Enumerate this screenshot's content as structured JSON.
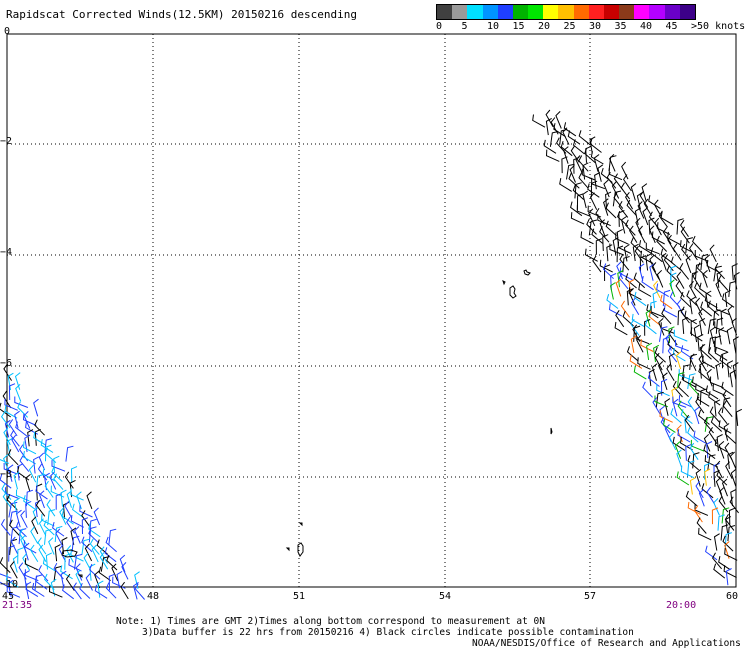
{
  "title": "Rapidscat Corrected Winds(12.5KM) 20150216 descending",
  "legend": {
    "unit": "knots",
    "colors": [
      "#404040",
      "#9a9a9a",
      "#00e0ff",
      "#0094ff",
      "#1f3fff",
      "#00b400",
      "#00e600",
      "#ffff00",
      "#ffc000",
      "#ff6a00",
      "#ff2020",
      "#c80000",
      "#8b3a1a",
      "#ff00ff",
      "#b400ff",
      "#6a00c8",
      "#3c0088"
    ],
    "labels": [
      "0",
      "5",
      "10",
      "15",
      "20",
      "25",
      "30",
      "35",
      "40",
      "45",
      ">50 knots"
    ]
  },
  "axes": {
    "x_ticks": [
      "45",
      "48",
      "51",
      "54",
      "57",
      "60"
    ],
    "y_ticks": [
      "0",
      "−2",
      "−4",
      "−6",
      "−8",
      "−10"
    ]
  },
  "times": {
    "left": "21:35",
    "right": "20:00"
  },
  "notes": [
    "Note: 1) Times are GMT 2)Times along bottom correspond to measurement at 0N",
    "3)Data buffer is 22 hrs from 20150216 4) Black circles indicate possible contamination",
    "NOAA/NESDIS/Office of Research and Applications"
  ],
  "colors": {
    "time_label": "#800080",
    "grid": "#000000"
  }
}
